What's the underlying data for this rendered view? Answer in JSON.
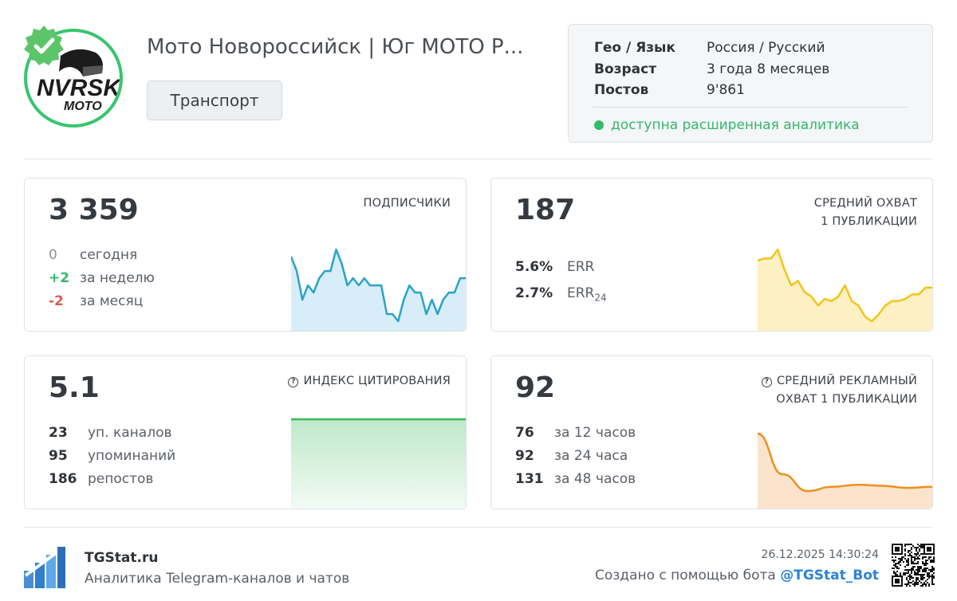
{
  "channel": {
    "title": "Мото Новороссийск | Юг МОТО Р...",
    "category": "Транспорт",
    "logo_text_main": "NVRSK",
    "logo_text_sub": "MOTO"
  },
  "info": {
    "geo_label": "Гео / Язык",
    "geo_value": "Россия / Русский",
    "age_label": "Возраст",
    "age_value": "3 года 8 месяцев",
    "posts_label": "Постов",
    "posts_value": "9'861",
    "analytics_text": "доступна расширенная аналитика"
  },
  "subscribers": {
    "value": "3 359",
    "label": "ПОДПИСЧИКИ",
    "today_value": "0",
    "today_label": "сегодня",
    "week_value": "+2",
    "week_label": "за неделю",
    "month_value": "-2",
    "month_label": "за месяц"
  },
  "reach": {
    "value": "187",
    "label_line1": "СРЕДНИЙ ОХВАТ",
    "label_line2": "1 ПУБЛИКАЦИИ",
    "err_value": "5.6%",
    "err_label": "ERR",
    "err24_value": "2.7%",
    "err24_label": "ERR",
    "err24_sub": "24"
  },
  "citation": {
    "value": "5.1",
    "label": "ИНДЕКС ЦИТИРОВАНИЯ",
    "channels_value": "23",
    "channels_label": "уп. каналов",
    "mentions_value": "95",
    "mentions_label": "упоминаний",
    "reposts_value": "186",
    "reposts_label": "репостов"
  },
  "ad_reach": {
    "value": "92",
    "label_line1": "СРЕДНИЙ РЕКЛАМНЫЙ",
    "label_line2": "ОХВАТ 1 ПУБЛИКАЦИИ",
    "h12_value": "76",
    "h12_label": "за 12 часов",
    "h24_value": "92",
    "h24_label": "за 24 часа",
    "h48_value": "131",
    "h48_label": "за 48 часов"
  },
  "footer": {
    "site": "TGStat.ru",
    "tagline": "Аналитика Telegram-каналов и чатов",
    "timestamp": "26.12.2025 14:30:24",
    "made_with": "Создано с помощью бота ",
    "bot": "@TGStat_Bot"
  },
  "colors": {
    "green": "#32b96a",
    "red": "#e05a4f",
    "subscribers_line": "#2aa2c8",
    "subscribers_fill": "#d7edf7",
    "reach_line": "#f3c41a",
    "reach_fill": "#fdf1c4",
    "citation_line": "#3cb95c",
    "citation_fill": "#dcf3e2",
    "ad_line": "#ef8f1c",
    "ad_fill": "#fce4cc",
    "link_blue": "#2b84d4"
  },
  "chart_data": [
    {
      "type": "area",
      "series": [
        {
          "values": [
            3362,
            3360,
            3356,
            3358,
            3357,
            3359,
            3360,
            3360,
            3363,
            3361,
            3358,
            3359,
            3358,
            3359,
            3358,
            3358,
            3358,
            3354,
            3354,
            3353,
            3356,
            3358,
            3357,
            3357,
            3354,
            3356,
            3354,
            3356,
            3357,
            3357,
            3359,
            3359
          ]
        }
      ]
    },
    {
      "type": "area",
      "series": [
        {
          "values": [
            202,
            203,
            203,
            207,
            198,
            191,
            193,
            188,
            186,
            182,
            185,
            184,
            186,
            191,
            184,
            182,
            177,
            175,
            178,
            182,
            184,
            184,
            185,
            187,
            187,
            190,
            190
          ]
        }
      ]
    },
    {
      "type": "area",
      "series": [
        {
          "values": [
            5.1,
            5.1
          ]
        }
      ]
    },
    {
      "type": "area",
      "series": [
        {
          "values": [
            131,
            92,
            76,
            80,
            82,
            81,
            79,
            80
          ]
        }
      ]
    }
  ]
}
